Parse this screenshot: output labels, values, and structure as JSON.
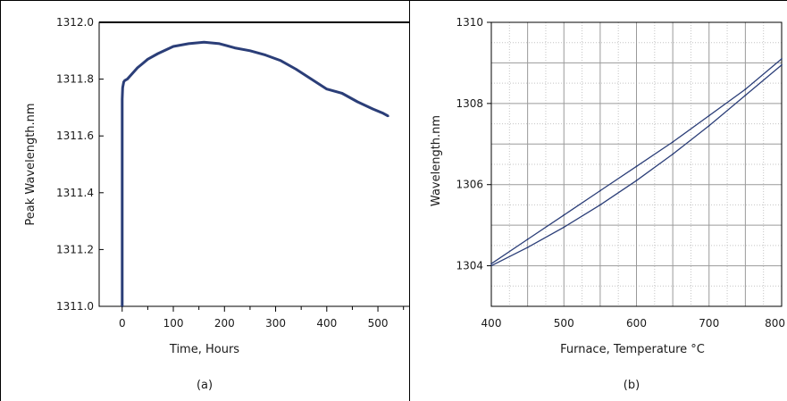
{
  "colors": {
    "series": "#2b3e78",
    "axis": "#000000",
    "grid_major": "#9a9a9a",
    "grid_minor": "#c4c4c4",
    "text": "#1a1a1a"
  },
  "chart_data": [
    {
      "type": "line",
      "caption": "(a)",
      "xlabel": "Time, Hours",
      "ylabel": "Peak Wavelength.nm",
      "xlim": [
        -45,
        575
      ],
      "ylim": [
        1311.0,
        1312.0
      ],
      "xticks": [
        0,
        100,
        200,
        300,
        400,
        500
      ],
      "yticks": [
        1311.0,
        1311.2,
        1311.4,
        1311.6,
        1311.8,
        1312.0
      ],
      "ytick_labels": [
        "1311.0",
        "1311.2",
        "1311.4",
        "1311.6",
        "1311.8",
        "1312.0"
      ],
      "grid": false,
      "series": [
        {
          "x": [
            0,
            0,
            1,
            2,
            3,
            5,
            10,
            20,
            30,
            40,
            50,
            70,
            100,
            130,
            160,
            190,
            220,
            250,
            280,
            310,
            340,
            370,
            400,
            430,
            460,
            490,
            510,
            520
          ],
          "y": [
            1311.0,
            1311.73,
            1311.77,
            1311.78,
            1311.79,
            1311.795,
            1311.8,
            1311.82,
            1311.84,
            1311.855,
            1311.87,
            1311.89,
            1311.915,
            1311.925,
            1311.93,
            1311.925,
            1311.91,
            1311.9,
            1311.885,
            1311.865,
            1311.835,
            1311.8,
            1311.765,
            1311.75,
            1311.72,
            1311.695,
            1311.68,
            1311.67
          ]
        }
      ]
    },
    {
      "type": "line",
      "caption": "(b)",
      "xlabel": "Furnace, Temperature °C",
      "ylabel": "Wavelength.nm",
      "xlim": [
        400,
        800
      ],
      "ylim": [
        1303,
        1310
      ],
      "xticks": [
        400,
        500,
        600,
        700,
        800
      ],
      "yticks": [
        1304,
        1306,
        1308,
        1310
      ],
      "grid": true,
      "series": [
        {
          "x": [
            400,
            450,
            500,
            550,
            600,
            650,
            700,
            750,
            800
          ],
          "y": [
            1304.05,
            1304.65,
            1305.25,
            1305.85,
            1306.45,
            1307.05,
            1307.7,
            1308.35,
            1309.1
          ]
        },
        {
          "x": [
            400,
            450,
            500,
            550,
            600,
            650,
            700,
            750,
            800
          ],
          "y": [
            1304.0,
            1304.45,
            1304.95,
            1305.5,
            1306.1,
            1306.75,
            1307.45,
            1308.2,
            1308.95
          ]
        }
      ]
    }
  ]
}
